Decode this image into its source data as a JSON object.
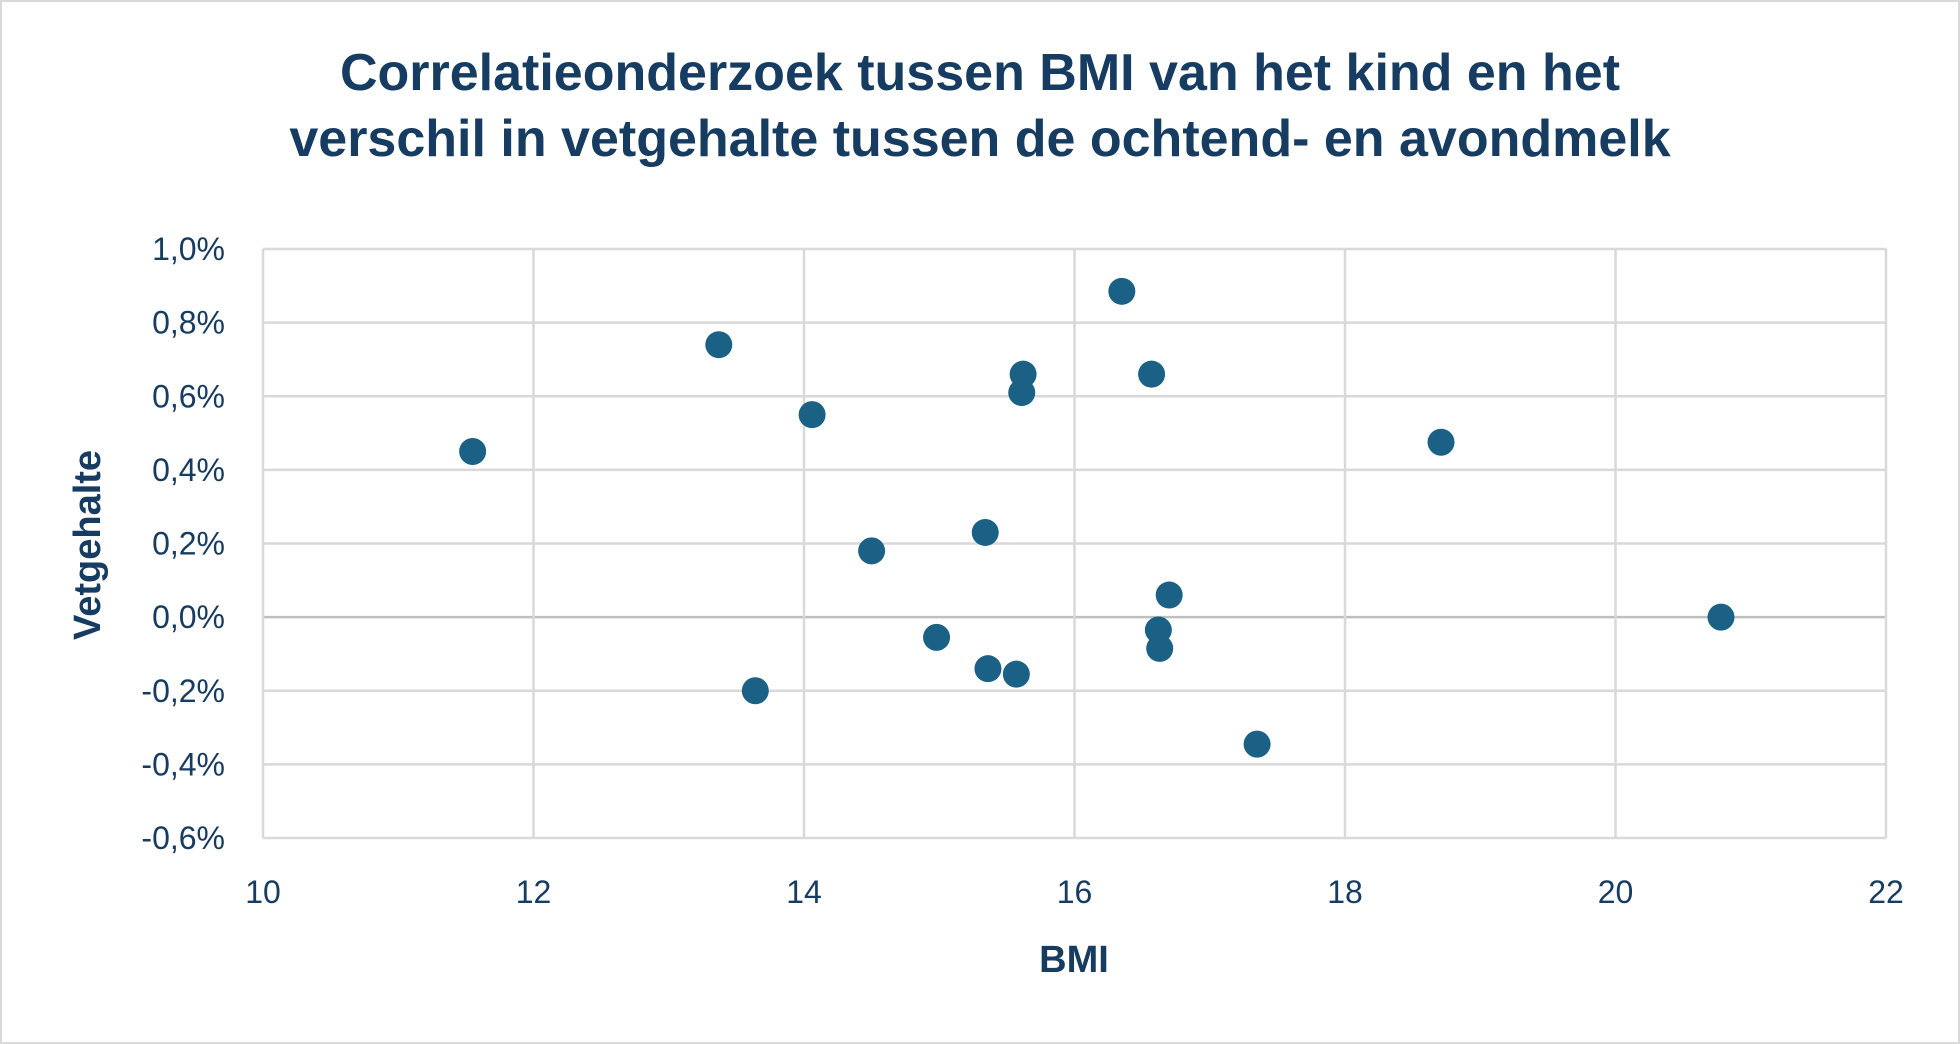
{
  "chart_data": {
    "type": "scatter",
    "title_lines": [
      "Correlatieonderzoek tussen BMI van het kind en het",
      "verschil in vetgehalte tussen de ochtend- en avondmelk"
    ],
    "xlabel": "BMI",
    "ylabel": "Vetgehalte",
    "xlim": [
      10,
      22
    ],
    "ylim": [
      -0.6,
      1.0
    ],
    "x_ticks": [
      10,
      12,
      14,
      16,
      18,
      20,
      22
    ],
    "y_ticks": [
      1.0,
      0.8,
      0.6,
      0.4,
      0.2,
      0.0,
      -0.2,
      -0.4,
      -0.6
    ],
    "x_tick_labels": [
      "10",
      "12",
      "14",
      "16",
      "18",
      "20",
      "22"
    ],
    "y_tick_labels": [
      "1,0%",
      "0,8%",
      "0,6%",
      "0,4%",
      "0,2%",
      "0,0%",
      "-0,2%",
      "-0,4%",
      "-0,6%"
    ],
    "y_unit": "%",
    "grid": true,
    "legend": false,
    "marker_color": "#1b6185",
    "grid_color": "#d9d9d9",
    "zero_line_color": "#bfbfbf",
    "text_color": "#173c61",
    "points": [
      {
        "x": 11.55,
        "y": 0.45
      },
      {
        "x": 13.37,
        "y": 0.74
      },
      {
        "x": 13.64,
        "y": -0.2
      },
      {
        "x": 14.06,
        "y": 0.55
      },
      {
        "x": 14.5,
        "y": 0.18
      },
      {
        "x": 14.98,
        "y": -0.055
      },
      {
        "x": 15.34,
        "y": 0.23
      },
      {
        "x": 15.36,
        "y": -0.14
      },
      {
        "x": 15.57,
        "y": -0.155
      },
      {
        "x": 15.61,
        "y": 0.61
      },
      {
        "x": 15.62,
        "y": 0.66
      },
      {
        "x": 16.35,
        "y": 0.885
      },
      {
        "x": 16.57,
        "y": 0.66
      },
      {
        "x": 16.62,
        "y": -0.035
      },
      {
        "x": 16.63,
        "y": -0.085
      },
      {
        "x": 16.7,
        "y": 0.06
      },
      {
        "x": 17.35,
        "y": -0.345
      },
      {
        "x": 18.71,
        "y": 0.475
      },
      {
        "x": 20.78,
        "y": 0.0
      }
    ]
  }
}
